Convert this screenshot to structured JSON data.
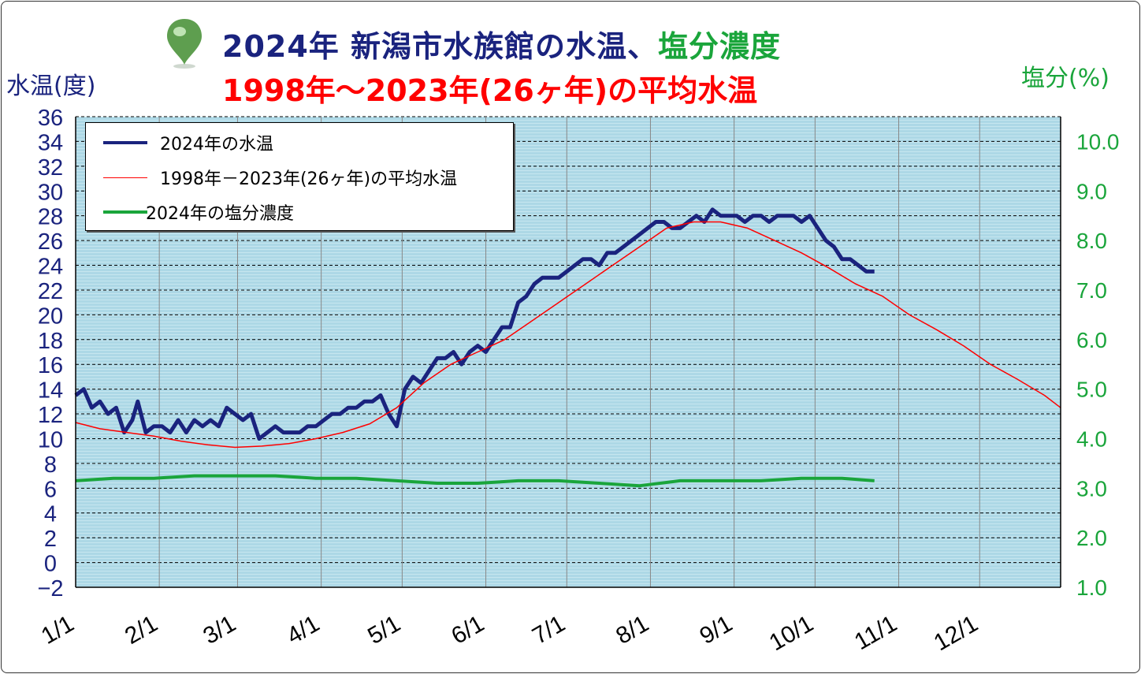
{
  "title": {
    "line1_part1": "2024年 新潟市水族館の水温、",
    "line1_part2": "塩分濃度",
    "line2": "1998年～2023年(26ヶ年)の平均水温"
  },
  "axis": {
    "left_label": "水温(度)",
    "right_label": "塩分(%)"
  },
  "legend": {
    "items": [
      {
        "label": "2024年の水温",
        "color": "#1a237e"
      },
      {
        "label": "1998年－2023年(26ヶ年)の平均水温",
        "color": "#ff0000"
      },
      {
        "label": "2024年の塩分濃度",
        "color": "#1aa53b"
      }
    ]
  },
  "colors": {
    "plot_bg": "#add8e6",
    "water_2024": "#1a237e",
    "avg": "#ff0000",
    "salinity": "#1aa53b"
  },
  "chart_data": {
    "type": "line",
    "x_unit": "day_of_year",
    "xlim": [
      1,
      366
    ],
    "x_ticks": [
      {
        "label": "1/1",
        "day": 1
      },
      {
        "label": "2/1",
        "day": 32
      },
      {
        "label": "3/1",
        "day": 61
      },
      {
        "label": "4/1",
        "day": 92
      },
      {
        "label": "5/1",
        "day": 122
      },
      {
        "label": "6/1",
        "day": 153
      },
      {
        "label": "7/1",
        "day": 183
      },
      {
        "label": "8/1",
        "day": 214
      },
      {
        "label": "9/1",
        "day": 245
      },
      {
        "label": "10/1",
        "day": 275
      },
      {
        "label": "11/1",
        "day": 306
      },
      {
        "label": "12/1",
        "day": 336
      }
    ],
    "y_left": {
      "min": -2,
      "max": 36,
      "ticks": [
        "-2",
        "0",
        "2",
        "4",
        "6",
        "8",
        "10",
        "12",
        "14",
        "16",
        "18",
        "20",
        "22",
        "24",
        "26",
        "28",
        "30",
        "32",
        "34",
        "36"
      ]
    },
    "y_right": {
      "min": 1.0,
      "max": 10.5,
      "ticks": [
        "1.0",
        "2.0",
        "3.0",
        "4.0",
        "5.0",
        "6.0",
        "7.0",
        "8.0",
        "9.0",
        "10.0"
      ]
    },
    "grid": true,
    "series": [
      {
        "name": "2024年の水温",
        "axis": "left",
        "color": "#1a237e",
        "width": 5,
        "points": [
          [
            1,
            13.5
          ],
          [
            4,
            14
          ],
          [
            7,
            12.5
          ],
          [
            10,
            13
          ],
          [
            13,
            12
          ],
          [
            16,
            12.5
          ],
          [
            19,
            10.5
          ],
          [
            22,
            11.5
          ],
          [
            24,
            13
          ],
          [
            27,
            10.5
          ],
          [
            30,
            11
          ],
          [
            33,
            11
          ],
          [
            36,
            10.5
          ],
          [
            39,
            11.5
          ],
          [
            42,
            10.5
          ],
          [
            45,
            11.5
          ],
          [
            48,
            11
          ],
          [
            51,
            11.5
          ],
          [
            54,
            11
          ],
          [
            57,
            12.5
          ],
          [
            60,
            12
          ],
          [
            63,
            11.5
          ],
          [
            66,
            12
          ],
          [
            69,
            10
          ],
          [
            72,
            10.5
          ],
          [
            75,
            11
          ],
          [
            78,
            10.5
          ],
          [
            81,
            10.5
          ],
          [
            84,
            10.5
          ],
          [
            87,
            11
          ],
          [
            90,
            11
          ],
          [
            93,
            11.5
          ],
          [
            96,
            12
          ],
          [
            99,
            12
          ],
          [
            102,
            12.5
          ],
          [
            105,
            12.5
          ],
          [
            108,
            13
          ],
          [
            111,
            13
          ],
          [
            114,
            13.5
          ],
          [
            117,
            12
          ],
          [
            120,
            11
          ],
          [
            123,
            14
          ],
          [
            126,
            15
          ],
          [
            129,
            14.5
          ],
          [
            132,
            15.5
          ],
          [
            135,
            16.5
          ],
          [
            138,
            16.5
          ],
          [
            141,
            17
          ],
          [
            144,
            16
          ],
          [
            147,
            17
          ],
          [
            150,
            17.5
          ],
          [
            153,
            17
          ],
          [
            156,
            18
          ],
          [
            159,
            19
          ],
          [
            162,
            19
          ],
          [
            165,
            21
          ],
          [
            168,
            21.5
          ],
          [
            171,
            22.5
          ],
          [
            174,
            23
          ],
          [
            177,
            23
          ],
          [
            180,
            23
          ],
          [
            183,
            23.5
          ],
          [
            186,
            24
          ],
          [
            189,
            24.5
          ],
          [
            192,
            24.5
          ],
          [
            195,
            24
          ],
          [
            198,
            25
          ],
          [
            201,
            25
          ],
          [
            204,
            25.5
          ],
          [
            207,
            26
          ],
          [
            210,
            26.5
          ],
          [
            213,
            27
          ],
          [
            216,
            27.5
          ],
          [
            219,
            27.5
          ],
          [
            222,
            27
          ],
          [
            225,
            27
          ],
          [
            228,
            27.5
          ],
          [
            231,
            28
          ],
          [
            234,
            27.5
          ],
          [
            237,
            28.5
          ],
          [
            240,
            28
          ],
          [
            243,
            28
          ],
          [
            246,
            28
          ],
          [
            249,
            27.5
          ],
          [
            252,
            28
          ],
          [
            255,
            28
          ],
          [
            258,
            27.5
          ],
          [
            261,
            28
          ],
          [
            264,
            28
          ],
          [
            267,
            28
          ],
          [
            270,
            27.5
          ],
          [
            273,
            28
          ],
          [
            276,
            27
          ],
          [
            279,
            26
          ],
          [
            282,
            25.5
          ],
          [
            285,
            24.5
          ],
          [
            288,
            24.5
          ],
          [
            291,
            24
          ],
          [
            294,
            23.5
          ],
          [
            297,
            23.5
          ]
        ]
      },
      {
        "name": "1998年－2023年(26ヶ年)の平均水温",
        "axis": "left",
        "color": "#ff0000",
        "width": 1.5,
        "points": [
          [
            1,
            11.3
          ],
          [
            10,
            10.8
          ],
          [
            20,
            10.5
          ],
          [
            30,
            10.2
          ],
          [
            40,
            9.8
          ],
          [
            50,
            9.5
          ],
          [
            60,
            9.3
          ],
          [
            70,
            9.4
          ],
          [
            80,
            9.6
          ],
          [
            90,
            10
          ],
          [
            100,
            10.5
          ],
          [
            110,
            11.2
          ],
          [
            120,
            12.5
          ],
          [
            130,
            14.5
          ],
          [
            140,
            16
          ],
          [
            150,
            17
          ],
          [
            160,
            18
          ],
          [
            170,
            19.5
          ],
          [
            180,
            21
          ],
          [
            190,
            22.5
          ],
          [
            200,
            24
          ],
          [
            210,
            25.5
          ],
          [
            220,
            27
          ],
          [
            230,
            27.5
          ],
          [
            240,
            27.5
          ],
          [
            250,
            27
          ],
          [
            260,
            26
          ],
          [
            270,
            25
          ],
          [
            280,
            23.8
          ],
          [
            290,
            22.5
          ],
          [
            300,
            21.5
          ],
          [
            310,
            20
          ],
          [
            320,
            18.8
          ],
          [
            330,
            17.5
          ],
          [
            340,
            16
          ],
          [
            350,
            14.8
          ],
          [
            360,
            13.5
          ],
          [
            366,
            12.5
          ]
        ]
      },
      {
        "name": "2024年の塩分濃度",
        "axis": "right",
        "color": "#1aa53b",
        "width": 4,
        "points": [
          [
            1,
            3.15
          ],
          [
            15,
            3.2
          ],
          [
            30,
            3.2
          ],
          [
            45,
            3.25
          ],
          [
            60,
            3.25
          ],
          [
            75,
            3.25
          ],
          [
            90,
            3.2
          ],
          [
            105,
            3.2
          ],
          [
            120,
            3.15
          ],
          [
            135,
            3.1
          ],
          [
            150,
            3.1
          ],
          [
            165,
            3.15
          ],
          [
            180,
            3.15
          ],
          [
            195,
            3.1
          ],
          [
            210,
            3.05
          ],
          [
            225,
            3.15
          ],
          [
            240,
            3.15
          ],
          [
            255,
            3.15
          ],
          [
            270,
            3.2
          ],
          [
            285,
            3.2
          ],
          [
            297,
            3.15
          ]
        ]
      }
    ]
  }
}
